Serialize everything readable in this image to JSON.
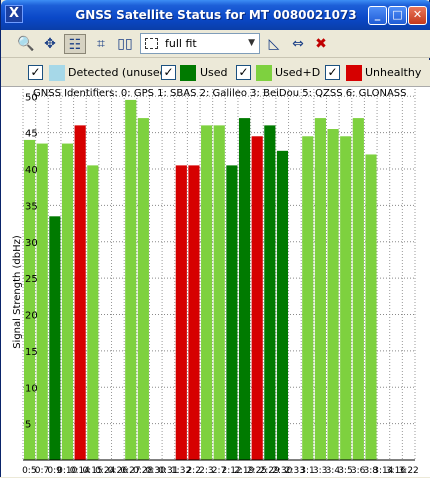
{
  "window": {
    "title": "GNSS Satellite Status for MT 0080021073",
    "title_buttons": [
      "_",
      "□",
      "✕"
    ]
  },
  "toolbar": {
    "tools": [
      {
        "name": "zoom-region-icon",
        "glyph": "🔍"
      },
      {
        "name": "pan-icon",
        "glyph": "✥"
      },
      {
        "name": "table-view-icon",
        "glyph": "☷"
      },
      {
        "name": "identify-icon",
        "glyph": "⌗"
      },
      {
        "name": "columns-icon",
        "glyph": "▯▯"
      }
    ],
    "zoom_value": "full fit",
    "right_tools": [
      {
        "name": "measure-icon",
        "glyph": "◺"
      },
      {
        "name": "fit-width-icon",
        "glyph": "⇔"
      },
      {
        "name": "clear-icon",
        "glyph": "✖"
      }
    ]
  },
  "legend": [
    {
      "label": "Detected (unused",
      "color": "#a6d8e8",
      "checked": true
    },
    {
      "label": "Used",
      "color": "#007a00",
      "checked": true
    },
    {
      "label": "Used+D",
      "color": "#7ed13f",
      "checked": true
    },
    {
      "label": "Unhealthy",
      "color": "#d60000",
      "checked": true
    }
  ],
  "chart_data": {
    "type": "bar",
    "annotation": "GNSS Identifiers: 0: GPS 1: SBAS 2: Galileo 3: BeiDou 5: QZSS 6: GLONASS",
    "ylabel": "Signal Strength (dbHz)",
    "ylim": [
      0,
      51
    ],
    "yticks": [
      5,
      10,
      15,
      20,
      25,
      30,
      35,
      40,
      45,
      50
    ],
    "categories": [
      "0:5",
      "0:7",
      "0:9",
      "0:10",
      "0:14",
      "0:15",
      "0:24",
      "0:26",
      "0:27",
      "0:28",
      "0:30",
      "0:31",
      "1:32",
      "2:2",
      "2:3",
      "2:7",
      "2:12",
      "2:19",
      "2:25",
      "2:29",
      "2:30",
      "2:33",
      "3:1",
      "3:3",
      "3:4",
      "3:5",
      "3:6",
      "3:8",
      "3:14",
      "3:16",
      "3:22"
    ],
    "tick_labels": [
      "0:5",
      "0:7",
      "0:9",
      "0:10",
      "0:14",
      "0:15",
      "0:24",
      "0:26",
      "0:27",
      "0:28",
      "0:30",
      "0:31",
      "1:32",
      "2:2",
      "2:3",
      "2:7",
      "2:12",
      "2:19",
      "2:25",
      "2:29",
      "2:30",
      "2:33",
      "3:1",
      "3:3",
      "3:4",
      "3:5",
      "3:6",
      "3:8",
      "3:14",
      "3:16",
      "3:22"
    ],
    "bars": [
      {
        "value": 44,
        "status": "Used+D"
      },
      {
        "value": 43.5,
        "status": "Used+D"
      },
      {
        "value": 33.5,
        "status": "Used"
      },
      {
        "value": 43.5,
        "status": "Used+D"
      },
      {
        "value": 46,
        "status": "Unhealthy"
      },
      {
        "value": 40.5,
        "status": "Used+D"
      },
      {
        "value": 0,
        "status": "Used+D"
      },
      {
        "value": 0,
        "status": "Used+D"
      },
      {
        "value": 49.5,
        "status": "Used+D"
      },
      {
        "value": 47,
        "status": "Used+D"
      },
      {
        "value": 0,
        "status": "Used+D"
      },
      {
        "value": 0,
        "status": "Used+D"
      },
      {
        "value": 40.5,
        "status": "Unhealthy"
      },
      {
        "value": 40.5,
        "status": "Unhealthy"
      },
      {
        "value": 46,
        "status": "Used+D"
      },
      {
        "value": 46,
        "status": "Used+D"
      },
      {
        "value": 40.5,
        "status": "Used"
      },
      {
        "value": 47,
        "status": "Used"
      },
      {
        "value": 44.5,
        "status": "Unhealthy"
      },
      {
        "value": 46,
        "status": "Used"
      },
      {
        "value": 42.5,
        "status": "Used"
      },
      {
        "value": 0,
        "status": "Used+D"
      },
      {
        "value": 44.5,
        "status": "Used+D"
      },
      {
        "value": 47,
        "status": "Used+D"
      },
      {
        "value": 45.5,
        "status": "Used+D"
      },
      {
        "value": 44.5,
        "status": "Used+D"
      },
      {
        "value": 47,
        "status": "Used+D"
      },
      {
        "value": 42,
        "status": "Used+D"
      },
      {
        "value": 0,
        "status": "Used+D"
      },
      {
        "value": 0,
        "status": "Used+D"
      },
      {
        "value": 0,
        "status": "Used+D"
      }
    ],
    "grid": true,
    "legend_position": "top"
  }
}
